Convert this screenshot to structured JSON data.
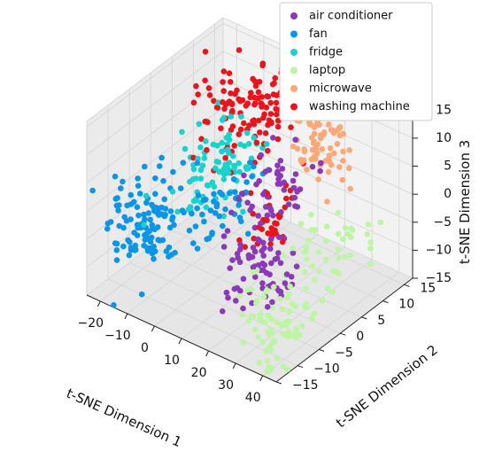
{
  "chart_data": {
    "type": "scatter",
    "projection": "3d",
    "title": "",
    "xlabel": "t-SNE Dimension 1",
    "ylabel": "t-SNE Dimension 2",
    "zlabel": "t-SNE Dimension 3",
    "xlim": [
      -25,
      45
    ],
    "ylim": [
      -15,
      17
    ],
    "zlim": [
      -15,
      16
    ],
    "xticks": [
      -20,
      -10,
      0,
      10,
      20,
      30,
      40
    ],
    "yticks": [
      -15,
      -10,
      -5,
      0,
      5,
      10,
      15
    ],
    "zticks": [
      -15,
      -10,
      -5,
      0,
      5,
      10,
      15
    ],
    "grid": true,
    "legend_position": "top-right",
    "series": [
      {
        "name": "air conditioner",
        "color": "#8c39b8",
        "clusters": [
          {
            "cx": 27,
            "cy": -8,
            "cz": -3,
            "sx": 6,
            "sy": 3,
            "sz": 3,
            "n": 70
          },
          {
            "cx": 21,
            "cy": 0,
            "cz": 6,
            "sx": 5,
            "sy": 4,
            "sz": 3,
            "n": 50
          }
        ]
      },
      {
        "name": "fan",
        "color": "#0a96e6",
        "clusters": [
          {
            "cx": -12,
            "cy": -9,
            "cz": -3,
            "sx": 5,
            "sy": 3,
            "sz": 4,
            "n": 120
          },
          {
            "cx": 5,
            "cy": -3,
            "cz": 1,
            "sx": 4,
            "sy": 4,
            "sz": 3,
            "n": 45
          }
        ]
      },
      {
        "name": "fridge",
        "color": "#19d2cc",
        "clusters": [
          {
            "cx": -4,
            "cy": 3,
            "cz": 3,
            "sx": 5,
            "sy": 4,
            "sz": 3,
            "n": 95
          }
        ]
      },
      {
        "name": "laptop",
        "color": "#bcf5a3",
        "clusters": [
          {
            "cx": 40,
            "cy": -12,
            "cz": -9,
            "sx": 6,
            "sy": 4,
            "sz": 4,
            "n": 70
          },
          {
            "cx": 38,
            "cy": 1,
            "cz": -3,
            "sx": 6,
            "sy": 6,
            "sz": 4,
            "n": 55
          }
        ]
      },
      {
        "name": "microwave",
        "color": "#fba876",
        "clusters": [
          {
            "cx": 16,
            "cy": 14,
            "cz": 5,
            "sx": 4,
            "sy": 3,
            "sz": 5,
            "n": 100
          }
        ]
      },
      {
        "name": "washing machine",
        "color": "#e8151d",
        "clusters": [
          {
            "cx": -2,
            "cy": 10,
            "cz": 9,
            "sx": 7,
            "sy": 4,
            "sz": 3,
            "n": 130
          },
          {
            "cx": 18,
            "cy": 0,
            "cz": 0,
            "sx": 3,
            "sy": 3,
            "sz": 3,
            "n": 35
          }
        ]
      }
    ]
  }
}
